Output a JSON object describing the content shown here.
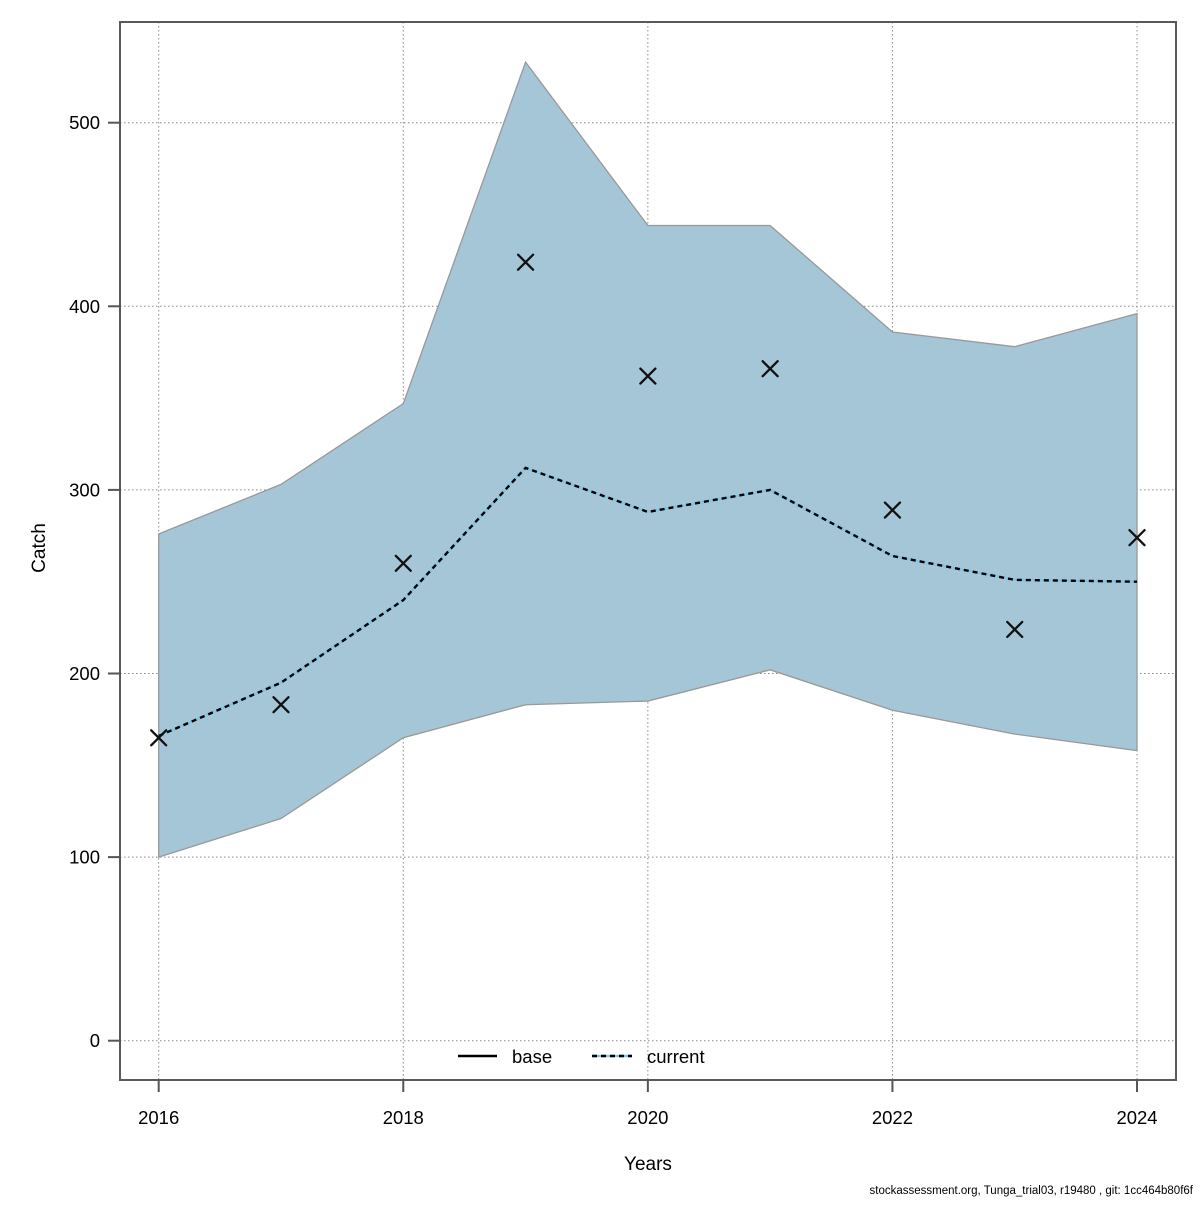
{
  "page": {
    "footer": "stockassessment.org, Tunga_trial03, r19480 , git: 1cc464b80f6f"
  },
  "chart_data": {
    "type": "line",
    "title": "",
    "xlabel": "Years",
    "ylabel": "Catch",
    "x": [
      2016,
      2017,
      2018,
      2019,
      2020,
      2021,
      2022,
      2023,
      2024
    ],
    "x_ticks": [
      "2016",
      "2018",
      "2020",
      "2022",
      "2024"
    ],
    "y_ticks": [
      "0",
      "100",
      "200",
      "300",
      "400",
      "500"
    ],
    "xlim": [
      2015.68,
      2024.32
    ],
    "ylim": [
      -21,
      554
    ],
    "grid": "dotted",
    "legend_position": "bottom-center-inside",
    "series": [
      {
        "name": "observed-catch",
        "type": "scatter",
        "marker": "x",
        "color": "#111111",
        "values": [
          165,
          183,
          260,
          424,
          362,
          366,
          289,
          224,
          274
        ]
      },
      {
        "name": "current",
        "type": "line",
        "style": "black-dashes-over-lightblue",
        "color": "#82c4e6",
        "dash_color": "#000000",
        "values": [
          166,
          195,
          240,
          312,
          288,
          300,
          264,
          251,
          250
        ]
      },
      {
        "name": "current-confidence-band",
        "type": "band",
        "fill": "#a5c6d7",
        "edge": "#999999",
        "upper": [
          276,
          303,
          347,
          533,
          444,
          444,
          386,
          378,
          396
        ],
        "lower": [
          100,
          121,
          165,
          183,
          185,
          202,
          180,
          167,
          158
        ]
      }
    ],
    "legend": [
      {
        "label": "base",
        "line": "solid",
        "color": "#000000"
      },
      {
        "label": "current",
        "line": "dashed",
        "color": "#82c4e6",
        "dash_color": "#000000"
      }
    ],
    "colors": {
      "grid": "#8a8a8a",
      "box": "#595959",
      "tick": "#555555"
    }
  }
}
